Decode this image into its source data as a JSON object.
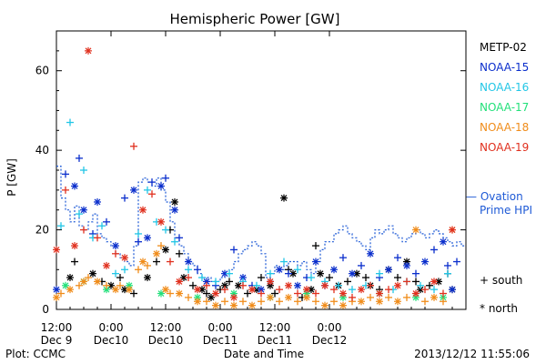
{
  "chart_data": {
    "type": "scatter",
    "title": "Hemispheric Power [GW]",
    "ylabel": "P [GW]",
    "xlabel": "Date and Time",
    "ylim": [
      0,
      70
    ],
    "yticks": [
      0,
      20,
      40,
      60
    ],
    "xlim": [
      0,
      90
    ],
    "x_unit": "hours since Dec 9 12:00",
    "xticks": [
      {
        "x": 0,
        "line1": "12:00",
        "line2": "Dec 9"
      },
      {
        "x": 12,
        "line1": "0:00",
        "line2": "Dec10"
      },
      {
        "x": 24,
        "line1": "12:00",
        "line2": "Dec10"
      },
      {
        "x": 36,
        "line1": "0:00",
        "line2": "Dec11"
      },
      {
        "x": 48,
        "line1": "12:00",
        "line2": "Dec11"
      },
      {
        "x": 60,
        "line1": "0:00",
        "line2": "Dec12"
      }
    ],
    "footer_left": "Plot: CCMC",
    "footer_right": "2013/12/12 11:55:06",
    "legend": {
      "satellites": [
        {
          "name": "METP-02",
          "color": "#000000"
        },
        {
          "name": "NOAA-15",
          "color": "#0a2ecc"
        },
        {
          "name": "NOAA-16",
          "color": "#22c6e6"
        },
        {
          "name": "NOAA-17",
          "color": "#22e07a"
        },
        {
          "name": "NOAA-18",
          "color": "#f08c1a"
        },
        {
          "name": "NOAA-19",
          "color": "#e0301e"
        }
      ],
      "ovation_line1": "— Ovation",
      "ovation_line2": "Prime HPI",
      "ovation_color": "#1e5ad6",
      "south_label": "+ south",
      "north_label": "* north"
    },
    "ovation": {
      "x": [
        0,
        1,
        2,
        3,
        4,
        5,
        6,
        7,
        8,
        9,
        10,
        11,
        12,
        13,
        14,
        15,
        16,
        17,
        18,
        19,
        20,
        21,
        22,
        23,
        24,
        25,
        26,
        27,
        28,
        29,
        30,
        31,
        32,
        33,
        34,
        35,
        36,
        37,
        38,
        39,
        40,
        41,
        42,
        43,
        44,
        45,
        46,
        47,
        48,
        49,
        50,
        51,
        52,
        53,
        54,
        55,
        56,
        57,
        58,
        59,
        60,
        61,
        62,
        63,
        64,
        65,
        66,
        67,
        68,
        69,
        70,
        71,
        72,
        73,
        74,
        75,
        76,
        77,
        78,
        79,
        80,
        81,
        82,
        83,
        84,
        85,
        86,
        87,
        88,
        89
      ],
      "y": [
        36,
        28,
        25,
        22,
        26,
        21,
        20,
        22,
        24,
        19,
        18,
        17,
        16,
        14,
        13,
        12,
        11,
        16,
        32,
        33,
        32,
        31,
        33,
        30,
        27,
        22,
        18,
        16,
        14,
        12,
        11,
        9,
        8,
        8,
        7,
        7,
        8,
        9,
        10,
        12,
        14,
        15,
        16,
        17,
        16,
        14,
        8,
        9,
        11,
        10,
        11,
        12,
        12,
        11,
        12,
        10,
        9,
        12,
        15,
        17,
        17,
        19,
        20,
        21,
        19,
        18,
        17,
        16,
        15,
        18,
        20,
        19,
        20,
        21,
        19,
        18,
        17,
        18,
        19,
        20,
        19,
        18,
        19,
        20,
        19,
        18,
        17,
        16,
        17,
        16
      ]
    },
    "series": [
      {
        "name": "METP-02",
        "color": "#000000",
        "marker": "mixed",
        "points": [
          [
            3,
            8
          ],
          [
            4,
            12
          ],
          [
            8,
            9
          ],
          [
            10,
            7
          ],
          [
            12,
            6
          ],
          [
            14,
            8
          ],
          [
            15,
            5
          ],
          [
            17,
            4
          ],
          [
            20,
            8
          ],
          [
            22,
            12
          ],
          [
            24,
            15
          ],
          [
            25,
            20
          ],
          [
            26,
            27
          ],
          [
            27,
            14
          ],
          [
            28,
            8
          ],
          [
            30,
            6
          ],
          [
            32,
            5
          ],
          [
            33,
            4
          ],
          [
            34,
            3
          ],
          [
            36,
            5
          ],
          [
            37,
            6
          ],
          [
            38,
            7
          ],
          [
            40,
            6
          ],
          [
            42,
            4
          ],
          [
            44,
            5
          ],
          [
            45,
            8
          ],
          [
            47,
            6
          ],
          [
            48,
            4
          ],
          [
            50,
            28
          ],
          [
            51,
            10
          ],
          [
            52,
            9
          ],
          [
            54,
            3
          ],
          [
            56,
            5
          ],
          [
            57,
            16
          ],
          [
            58,
            9
          ],
          [
            60,
            8
          ],
          [
            62,
            6
          ],
          [
            64,
            7
          ],
          [
            66,
            9
          ],
          [
            68,
            8
          ],
          [
            69,
            6
          ],
          [
            71,
            5
          ],
          [
            73,
            10
          ],
          [
            75,
            8
          ],
          [
            77,
            12
          ],
          [
            79,
            7
          ],
          [
            80,
            5
          ],
          [
            82,
            6
          ],
          [
            84,
            7
          ],
          [
            86,
            9
          ],
          [
            87,
            5
          ]
        ]
      },
      {
        "name": "NOAA-15",
        "color": "#0a2ecc",
        "marker": "mixed",
        "points": [
          [
            0,
            5
          ],
          [
            2,
            34
          ],
          [
            4,
            31
          ],
          [
            5,
            38
          ],
          [
            6,
            25
          ],
          [
            8,
            19
          ],
          [
            9,
            27
          ],
          [
            11,
            22
          ],
          [
            13,
            16
          ],
          [
            15,
            28
          ],
          [
            17,
            30
          ],
          [
            18,
            17
          ],
          [
            20,
            18
          ],
          [
            21,
            32
          ],
          [
            23,
            31
          ],
          [
            24,
            33
          ],
          [
            26,
            25
          ],
          [
            27,
            18
          ],
          [
            29,
            12
          ],
          [
            31,
            10
          ],
          [
            33,
            7
          ],
          [
            35,
            6
          ],
          [
            37,
            9
          ],
          [
            39,
            15
          ],
          [
            41,
            8
          ],
          [
            43,
            6
          ],
          [
            45,
            5
          ],
          [
            47,
            7
          ],
          [
            49,
            10
          ],
          [
            51,
            9
          ],
          [
            53,
            6
          ],
          [
            55,
            8
          ],
          [
            57,
            12
          ],
          [
            59,
            6
          ],
          [
            61,
            10
          ],
          [
            63,
            13
          ],
          [
            65,
            9
          ],
          [
            67,
            11
          ],
          [
            69,
            14
          ],
          [
            71,
            8
          ],
          [
            73,
            10
          ],
          [
            75,
            13
          ],
          [
            77,
            11
          ],
          [
            79,
            9
          ],
          [
            81,
            12
          ],
          [
            83,
            15
          ],
          [
            85,
            17
          ],
          [
            86,
            11
          ],
          [
            87,
            5
          ],
          [
            88,
            12
          ]
        ]
      },
      {
        "name": "NOAA-16",
        "color": "#22c6e6",
        "marker": "plus",
        "points": [
          [
            1,
            21
          ],
          [
            3,
            47
          ],
          [
            5,
            24
          ],
          [
            6,
            35
          ],
          [
            8,
            18
          ],
          [
            10,
            21
          ],
          [
            13,
            9
          ],
          [
            15,
            10
          ],
          [
            18,
            19
          ],
          [
            20,
            30
          ],
          [
            22,
            22
          ],
          [
            24,
            20
          ],
          [
            26,
            17
          ],
          [
            29,
            10
          ],
          [
            32,
            8
          ],
          [
            35,
            7
          ],
          [
            38,
            9
          ],
          [
            41,
            7
          ],
          [
            44,
            6
          ],
          [
            47,
            9
          ],
          [
            50,
            12
          ],
          [
            53,
            10
          ],
          [
            56,
            8
          ],
          [
            59,
            7
          ],
          [
            62,
            6
          ],
          [
            65,
            5
          ],
          [
            68,
            6
          ],
          [
            71,
            9
          ],
          [
            74,
            5
          ],
          [
            77,
            7
          ],
          [
            80,
            6
          ],
          [
            83,
            5
          ],
          [
            86,
            9
          ]
        ]
      },
      {
        "name": "NOAA-17",
        "color": "#22e07a",
        "marker": "star",
        "points": [
          [
            2,
            6
          ],
          [
            6,
            7
          ],
          [
            11,
            5
          ],
          [
            16,
            6
          ],
          [
            23,
            4
          ],
          [
            31,
            3
          ],
          [
            39,
            4
          ],
          [
            47,
            3
          ],
          [
            55,
            4
          ],
          [
            63,
            3
          ],
          [
            71,
            4
          ],
          [
            79,
            3
          ],
          [
            85,
            3
          ]
        ]
      },
      {
        "name": "NOAA-18",
        "color": "#f08c1a",
        "marker": "mixed",
        "points": [
          [
            0,
            3
          ],
          [
            1,
            4
          ],
          [
            3,
            5
          ],
          [
            5,
            6
          ],
          [
            6,
            7
          ],
          [
            7,
            8
          ],
          [
            9,
            7
          ],
          [
            11,
            6
          ],
          [
            13,
            5
          ],
          [
            14,
            6
          ],
          [
            16,
            5
          ],
          [
            18,
            10
          ],
          [
            19,
            12
          ],
          [
            20,
            11
          ],
          [
            22,
            14
          ],
          [
            23,
            16
          ],
          [
            24,
            5
          ],
          [
            25,
            4
          ],
          [
            27,
            4
          ],
          [
            29,
            3
          ],
          [
            31,
            2
          ],
          [
            33,
            2
          ],
          [
            35,
            1
          ],
          [
            37,
            2
          ],
          [
            39,
            1
          ],
          [
            41,
            2
          ],
          [
            43,
            1
          ],
          [
            45,
            2
          ],
          [
            47,
            3
          ],
          [
            49,
            2
          ],
          [
            51,
            3
          ],
          [
            53,
            2
          ],
          [
            55,
            3
          ],
          [
            57,
            2
          ],
          [
            59,
            1
          ],
          [
            61,
            2
          ],
          [
            63,
            1
          ],
          [
            65,
            2
          ],
          [
            67,
            2
          ],
          [
            69,
            3
          ],
          [
            71,
            2
          ],
          [
            73,
            3
          ],
          [
            75,
            2
          ],
          [
            77,
            3
          ],
          [
            79,
            20
          ],
          [
            81,
            2
          ],
          [
            83,
            3
          ],
          [
            85,
            2
          ],
          [
            87,
            20
          ]
        ]
      },
      {
        "name": "NOAA-19",
        "color": "#e0301e",
        "marker": "mixed",
        "points": [
          [
            0,
            15
          ],
          [
            2,
            30
          ],
          [
            4,
            16
          ],
          [
            6,
            20
          ],
          [
            7,
            65
          ],
          [
            9,
            18
          ],
          [
            11,
            11
          ],
          [
            13,
            14
          ],
          [
            15,
            13
          ],
          [
            17,
            41
          ],
          [
            19,
            25
          ],
          [
            21,
            29
          ],
          [
            23,
            22
          ],
          [
            25,
            12
          ],
          [
            27,
            7
          ],
          [
            29,
            8
          ],
          [
            31,
            5
          ],
          [
            33,
            6
          ],
          [
            35,
            4
          ],
          [
            37,
            5
          ],
          [
            39,
            3
          ],
          [
            41,
            6
          ],
          [
            43,
            5
          ],
          [
            45,
            4
          ],
          [
            47,
            7
          ],
          [
            49,
            5
          ],
          [
            51,
            6
          ],
          [
            53,
            4
          ],
          [
            55,
            5
          ],
          [
            57,
            4
          ],
          [
            59,
            6
          ],
          [
            61,
            5
          ],
          [
            63,
            4
          ],
          [
            65,
            3
          ],
          [
            67,
            5
          ],
          [
            69,
            6
          ],
          [
            71,
            4
          ],
          [
            73,
            5
          ],
          [
            75,
            6
          ],
          [
            77,
            7
          ],
          [
            79,
            4
          ],
          [
            81,
            5
          ],
          [
            83,
            7
          ],
          [
            85,
            4
          ],
          [
            87,
            20
          ]
        ]
      }
    ]
  }
}
